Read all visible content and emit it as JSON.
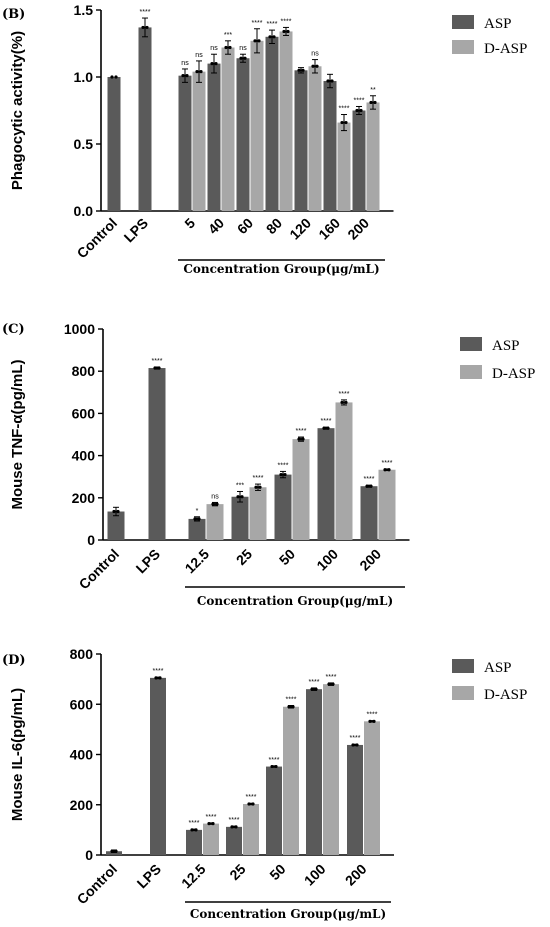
{
  "colors": {
    "asp": "#5a5a5a",
    "dasp": "#a7a7a7",
    "axis": "#000000"
  },
  "chart_data": [
    {
      "type": "bar",
      "panel_label": "(B)",
      "ylabel": "Phagocytic activity(%)",
      "ylim": [
        0,
        1.5
      ],
      "yticks": [
        "0.0",
        "0.5",
        "1.0",
        "1.5"
      ],
      "ytick_values": [
        0,
        0.5,
        1.0,
        1.5
      ],
      "group_label": "Concentration Group(μg/mL)",
      "legend": [
        "ASP",
        "D-ASP"
      ],
      "singles": [
        {
          "label": "Control",
          "value": 1.0,
          "err": 0.0,
          "sig": ""
        },
        {
          "label": "LPS",
          "value": 1.37,
          "err": 0.07,
          "sig": "****"
        }
      ],
      "categories": [
        "5",
        "40",
        "60",
        "80",
        "120",
        "160",
        "200"
      ],
      "series": [
        {
          "name": "ASP",
          "values": [
            1.01,
            1.1,
            1.14,
            1.3,
            1.05,
            0.97,
            0.75
          ],
          "errors": [
            0.05,
            0.07,
            0.03,
            0.05,
            0.02,
            0.05,
            0.03
          ],
          "sig": [
            "ns",
            "ns",
            "ns",
            "****",
            "",
            "",
            "****"
          ]
        },
        {
          "name": "D-ASP",
          "values": [
            1.04,
            1.22,
            1.27,
            1.34,
            1.08,
            0.66,
            0.81
          ],
          "errors": [
            0.08,
            0.05,
            0.09,
            0.03,
            0.05,
            0.06,
            0.05
          ],
          "sig": [
            "ns",
            "***",
            "****",
            "****",
            "ns",
            "****",
            "**"
          ]
        }
      ]
    },
    {
      "type": "bar",
      "panel_label": "(C)",
      "ylabel": "Mouse TNF-α(pg/mL)",
      "ylim": [
        0,
        1000
      ],
      "yticks": [
        "0",
        "200",
        "400",
        "600",
        "800",
        "1000"
      ],
      "ytick_values": [
        0,
        200,
        400,
        600,
        800,
        1000
      ],
      "group_label": "Concentration Group(μg/mL)",
      "legend": [
        "ASP",
        "D-ASP"
      ],
      "singles": [
        {
          "label": "Control",
          "value": 135,
          "err": 20,
          "sig": ""
        },
        {
          "label": "LPS",
          "value": 815,
          "err": 5,
          "sig": "****"
        }
      ],
      "categories": [
        "12.5",
        "25",
        "50",
        "100",
        "200"
      ],
      "series": [
        {
          "name": "ASP",
          "values": [
            100,
            205,
            310,
            530,
            255
          ],
          "errors": [
            10,
            25,
            15,
            5,
            5
          ],
          "sig": [
            "*",
            "***",
            "****",
            "****",
            "****"
          ]
        },
        {
          "name": "D-ASP",
          "values": [
            170,
            250,
            478,
            652,
            333
          ],
          "errors": [
            8,
            15,
            10,
            12,
            4
          ],
          "sig": [
            "ns",
            "****",
            "****",
            "****",
            "****"
          ]
        }
      ]
    },
    {
      "type": "bar",
      "panel_label": "(D)",
      "ylabel": "Mouse IL-6(pg/mL)",
      "ylim": [
        0,
        800
      ],
      "yticks": [
        "0",
        "200",
        "400",
        "600",
        "800"
      ],
      "ytick_values": [
        0,
        200,
        400,
        600,
        800
      ],
      "group_label": "Concentration Group(μg/mL)",
      "legend": [
        "ASP",
        "D-ASP"
      ],
      "singles": [
        {
          "label": "Control",
          "value": 15,
          "err": 5,
          "sig": ""
        },
        {
          "label": "LPS",
          "value": 705,
          "err": 3,
          "sig": "****"
        }
      ],
      "categories": [
        "12.5",
        "25",
        "50",
        "100",
        "200"
      ],
      "series": [
        {
          "name": "ASP",
          "values": [
            100,
            112,
            352,
            660,
            438
          ],
          "errors": [
            3,
            3,
            3,
            5,
            3
          ],
          "sig": [
            "****",
            "****",
            "****",
            "****",
            "****"
          ]
        },
        {
          "name": "D-ASP",
          "values": [
            125,
            203,
            590,
            680,
            532
          ],
          "errors": [
            3,
            3,
            5,
            5,
            3
          ],
          "sig": [
            "****",
            "****",
            "****",
            "****",
            "****"
          ]
        }
      ]
    }
  ]
}
